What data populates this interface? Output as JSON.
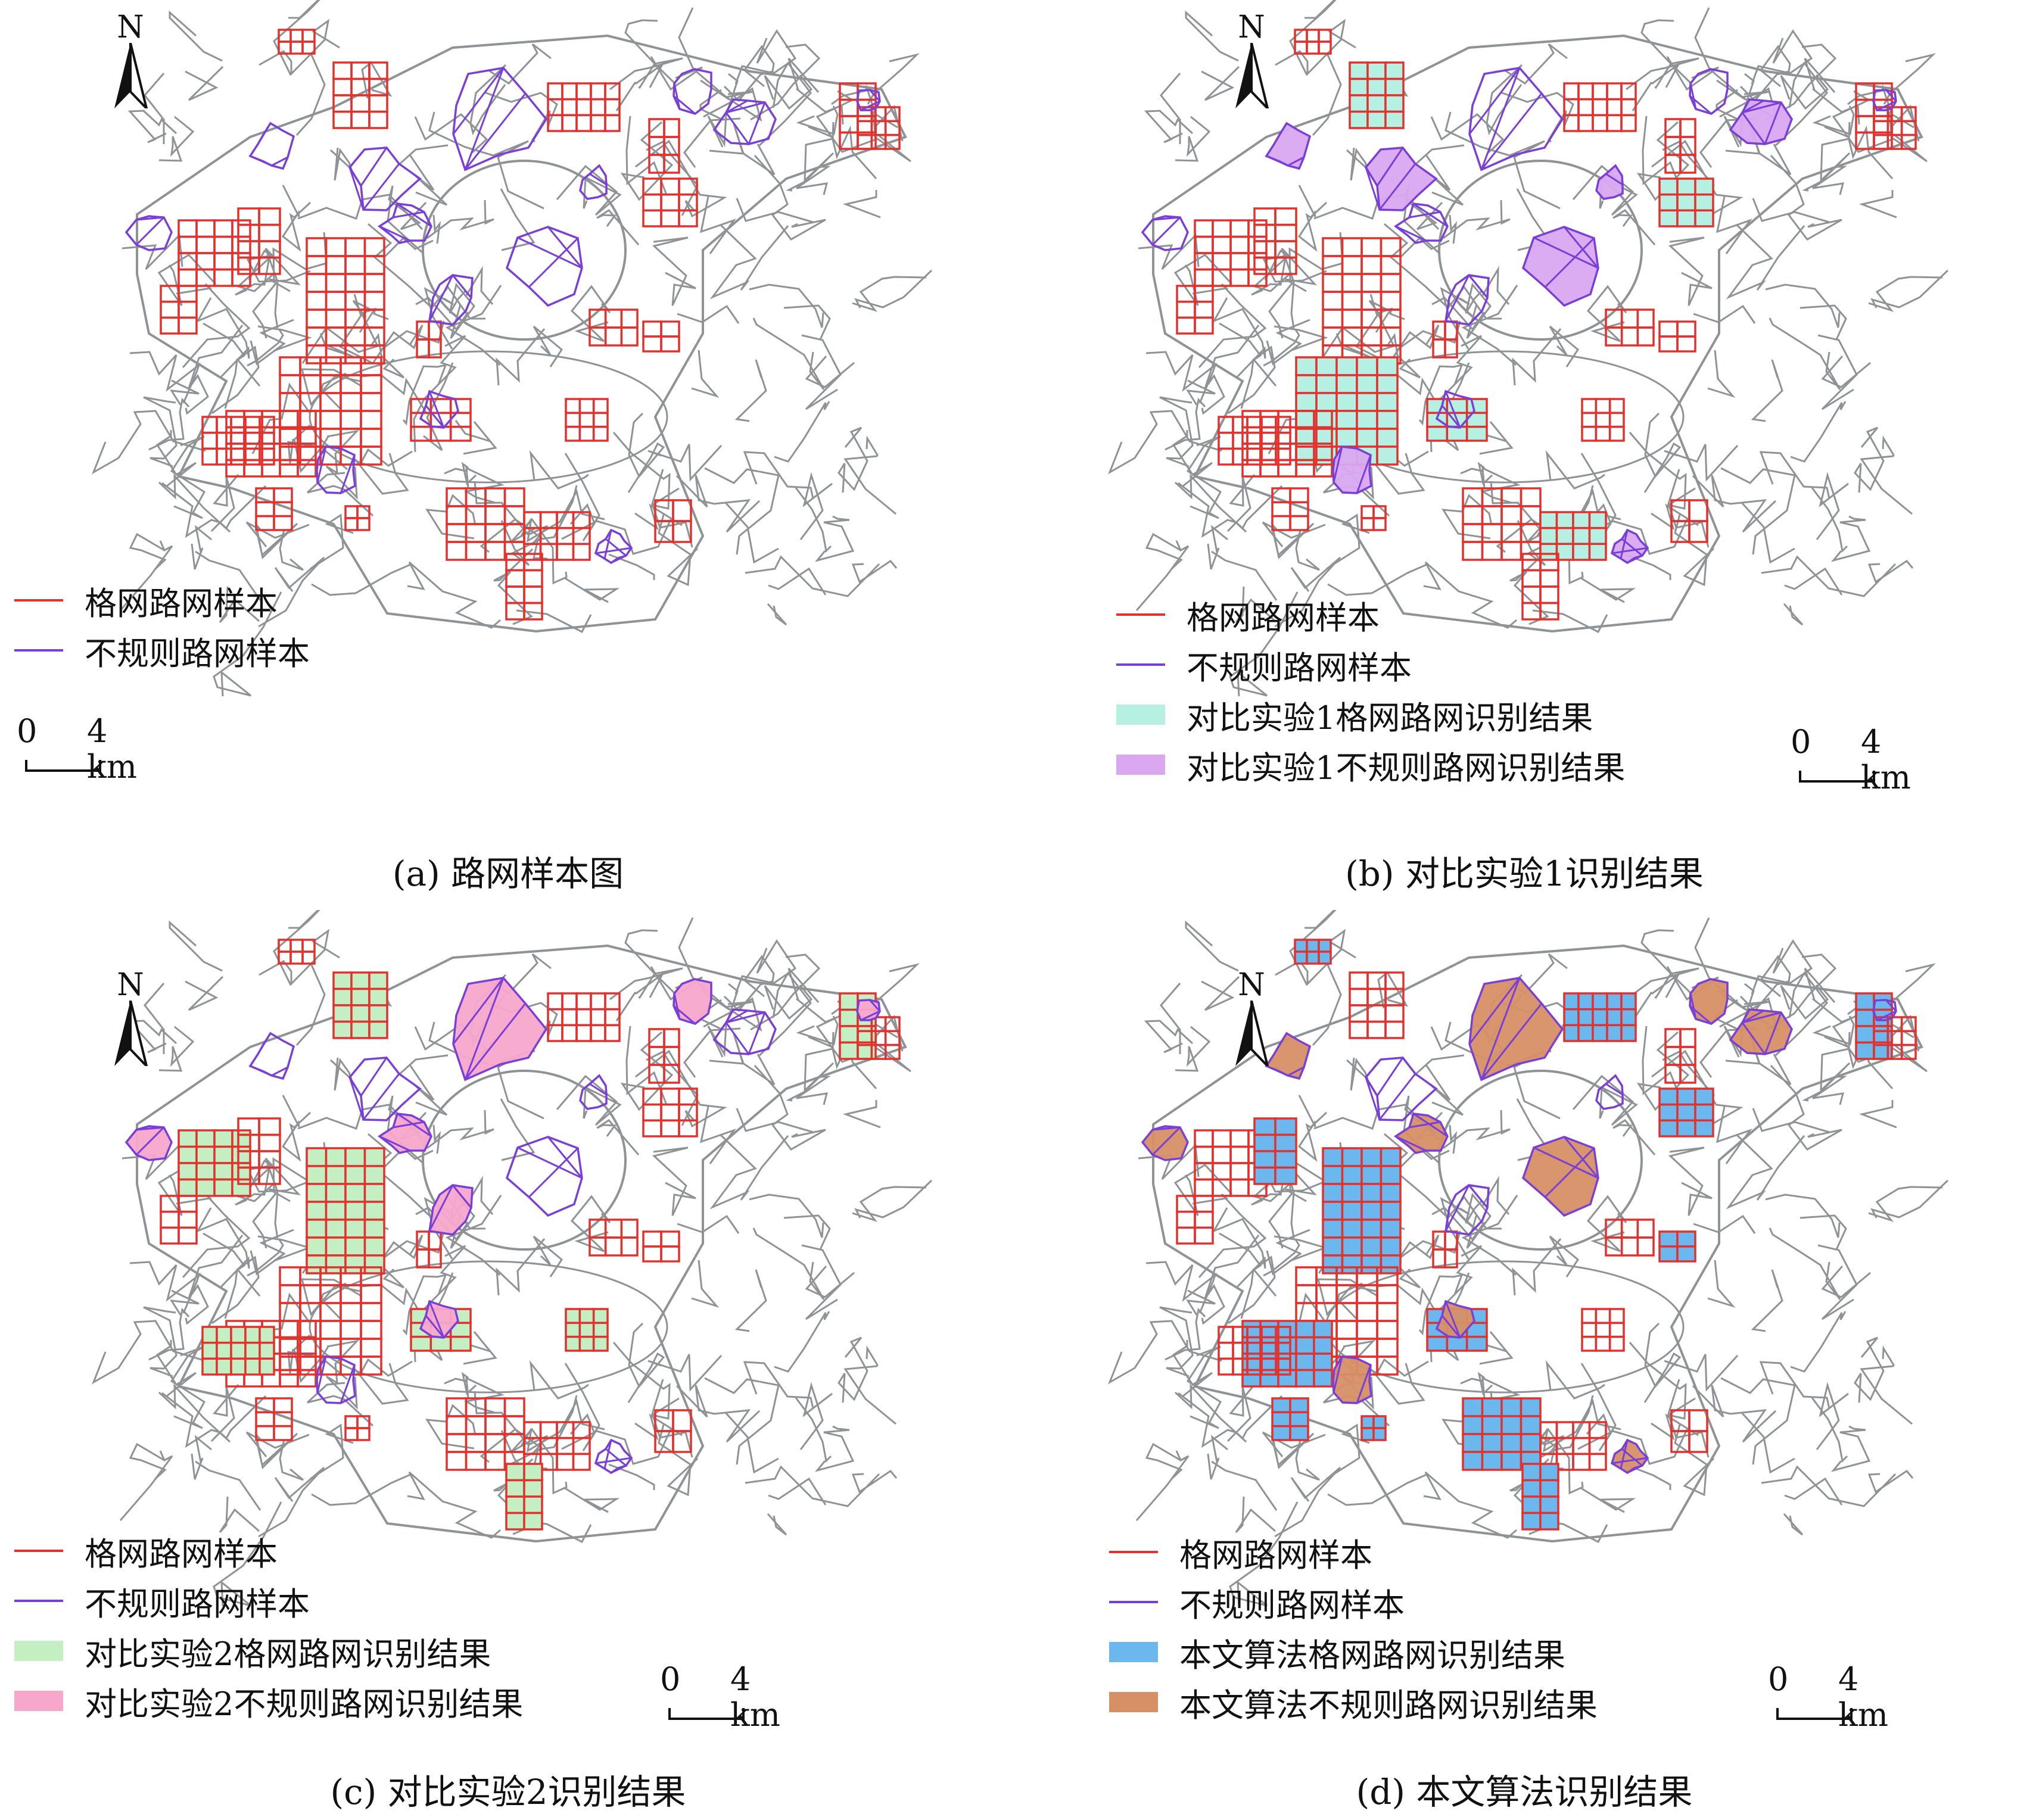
{
  "colors": {
    "base_road": "#8f9396",
    "grid_sample": "#e0322e",
    "irregular_sample": "#7a3fd6",
    "exp1_grid_fill": "#b5f0e3",
    "exp1_irregular_fill": "#d9a8f0",
    "exp2_grid_fill": "#c3efc2",
    "exp2_irregular_fill": "#f7a6cc",
    "ours_grid_fill": "#6cb7ee",
    "ours_irregular_fill": "#d78f66"
  },
  "icons": {
    "north_arrow": "north-arrow-icon"
  },
  "north_label": "N",
  "scale": {
    "start": "0",
    "end": "4 km"
  },
  "panels": [
    {
      "caption": "(a) 路网样本图",
      "legend": [
        {
          "label": "格网路网样本",
          "symbol": "line",
          "color": "#e0322e"
        },
        {
          "label": "不规则路网样本",
          "symbol": "line",
          "color": "#7a3fd6"
        }
      ]
    },
    {
      "caption": "(b) 对比实验1识别结果",
      "legend": [
        {
          "label": "格网路网样本",
          "symbol": "line",
          "color": "#e0322e"
        },
        {
          "label": "不规则路网样本",
          "symbol": "line",
          "color": "#7a3fd6"
        },
        {
          "label": "对比实验1格网路网识别结果",
          "symbol": "fill",
          "color": "#b5f0e3"
        },
        {
          "label": "对比实验1不规则路网识别结果",
          "symbol": "fill",
          "color": "#d9a8f0"
        }
      ]
    },
    {
      "caption": "(c) 对比实验2识别结果",
      "legend": [
        {
          "label": "格网路网样本",
          "symbol": "line",
          "color": "#e0322e"
        },
        {
          "label": "不规则路网样本",
          "symbol": "line",
          "color": "#7a3fd6"
        },
        {
          "label": "对比实验2格网路网识别结果",
          "symbol": "fill",
          "color": "#c3efc2"
        },
        {
          "label": "对比实验2不规则路网识别结果",
          "symbol": "fill",
          "color": "#f7a6cc"
        }
      ]
    },
    {
      "caption": "(d) 本文算法识别结果",
      "legend": [
        {
          "label": "格网路网样本",
          "symbol": "line",
          "color": "#e0322e"
        },
        {
          "label": "不规则路网样本",
          "symbol": "line",
          "color": "#7a3fd6"
        },
        {
          "label": "本文算法格网路网识别结果",
          "symbol": "fill",
          "color": "#6cb7ee"
        },
        {
          "label": "本文算法不规则路网识别结果",
          "symbol": "fill",
          "color": "#d78f66"
        }
      ]
    }
  ]
}
